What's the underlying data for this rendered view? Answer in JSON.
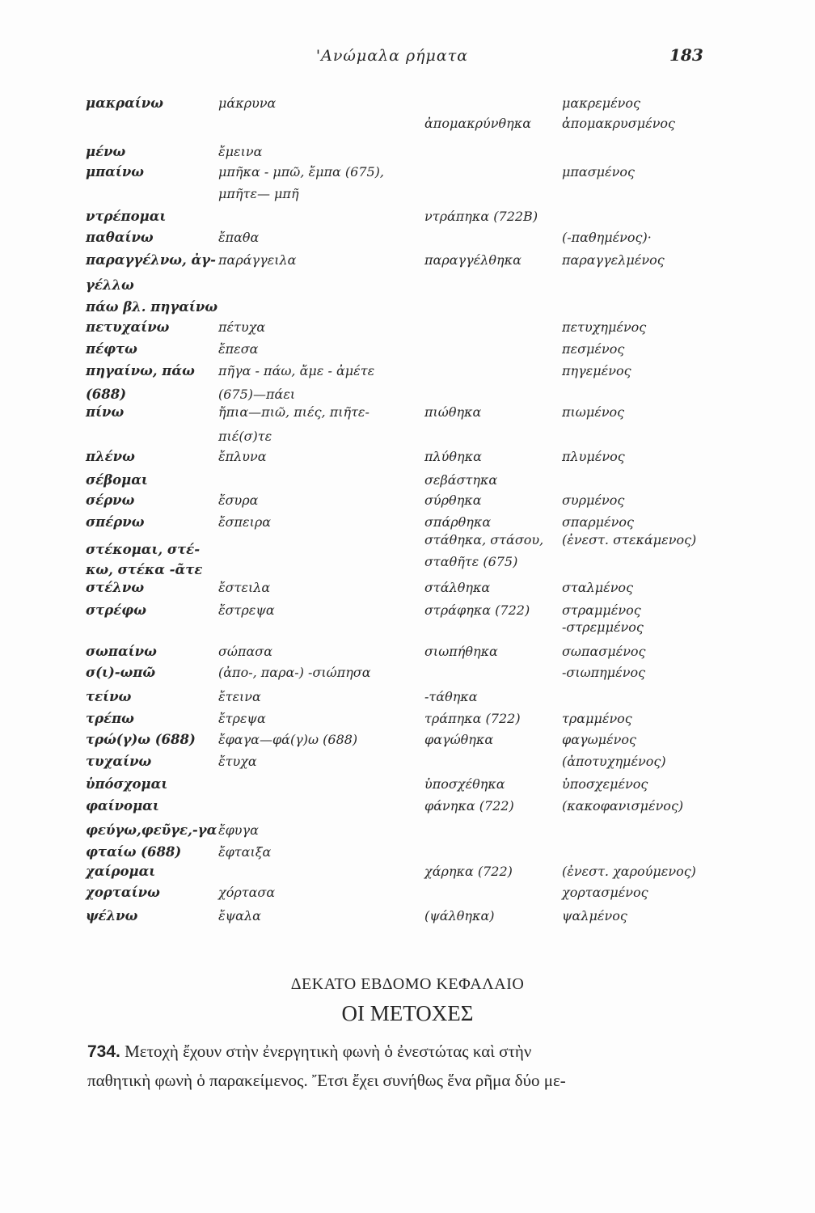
{
  "header": {
    "title": "'Ανώμαλα ρήματα",
    "page_number": "183"
  },
  "table": {
    "rows": [
      [
        "μακραίνω",
        "μάκρυνα",
        null,
        "μακρεμένος"
      ],
      [
        null,
        null,
        "ἀπομακρύνθηκα",
        "ἀπομακρυσμένος"
      ],
      [
        "μένω",
        "ἔμεινα",
        null,
        null
      ],
      [
        "μπαίνω",
        "μπῆκα - μπῶ, ἔμπα (675),",
        null,
        "μπασμένος"
      ],
      [
        null,
        "μπῆτε— μπῆ",
        null,
        null
      ],
      [
        "ντρέπομαι",
        null,
        "ντράπηκα (722Β)",
        null
      ],
      [
        "παθαίνω",
        "ἔπαθα",
        null,
        "(-παθημένος)·"
      ],
      [
        "παραγγέλνω, ἀγ-",
        "παράγγειλα",
        "παραγγέλθηκα",
        "παραγγελμένος"
      ],
      [
        "γέλλω",
        null,
        null,
        null
      ],
      [
        "πάω βλ. πηγαίνω",
        null,
        null,
        null
      ],
      [
        "πετυχαίνω",
        "πέτυχα",
        null,
        "πετυχημένος"
      ],
      [
        "πέφτω",
        "ἔπεσα",
        null,
        "πεσμένος"
      ],
      [
        "πηγαίνω, πάω",
        "πῆγα - πάω, ἄμε - ἀμέτε",
        null,
        "πηγεμένος"
      ],
      [
        "(688)",
        "(675)—πάει",
        null,
        null
      ],
      [
        "πίνω",
        "ἤπια—πιῶ, πιές, πιῆτε-",
        "πιώθηκα",
        "πιωμένος"
      ],
      [
        null,
        "πιέ(σ)τε",
        null,
        null
      ],
      [
        "πλένω",
        "ἔπλυνα",
        "πλύθηκα",
        "πλυμένος"
      ],
      [
        "σέβομαι",
        null,
        "σεβάστηκα",
        null
      ],
      [
        "σέρνω",
        "ἔσυρα",
        "σύρθηκα",
        "συρμένος"
      ],
      [
        "σπέρνω",
        "ἔσπειρα",
        "σπάρθηκα",
        "σπαρμένος"
      ],
      [
        null,
        null,
        "στάθηκα, στάσου,",
        "(ἐνεστ. στεκάμενος)"
      ],
      [
        "στέκομαι, στέ-",
        null,
        null,
        null
      ],
      [
        null,
        null,
        "σταθῆτε (675)",
        null
      ],
      [
        "κω, στέκα -ᾶτε",
        null,
        null,
        null
      ],
      [
        "στέλνω",
        "ἔστειλα",
        "στάλθηκα",
        "σταλμένος"
      ],
      [
        "στρέφω",
        "ἔστρεψα",
        "στράφηκα (722)",
        "στραμμένος"
      ],
      [
        null,
        null,
        null,
        "-στρεμμένος"
      ],
      [
        "σωπαίνω",
        "σώπασα",
        "σιωπήθηκα",
        "σωπασμένος"
      ],
      [
        "σ(ι)-ωπῶ",
        "(ἀπο-, παρα-) -σιώπησα",
        null,
        "-σιωπημένος"
      ],
      [
        "τείνω",
        "ἔτεινα",
        "-τάθηκα",
        null
      ],
      [
        "τρέπω",
        "ἔτρεψα",
        "τράπηκα (722)",
        "τραμμένος"
      ],
      [
        "τρώ(γ)ω (688)",
        "ἔφαγα—φά(γ)ω (688)",
        "φαγώθηκα",
        "φαγωμένος"
      ],
      [
        "τυχαίνω",
        "ἔτυχα",
        null,
        "(ἀποτυχημένος)"
      ],
      [
        "ὑπόσχομαι",
        null,
        "ὑποσχέθηκα",
        "ὑποσχεμένος"
      ],
      [
        "φαίνομαι",
        null,
        "φάνηκα (722)",
        "(κακοφανισμένος)"
      ],
      [
        "φεύγω,φεῦγε,-γα",
        "ἔφυγα",
        null,
        null
      ],
      [
        "φταίω (688)",
        "ἔφταιξα",
        null,
        null
      ],
      [
        "χαίρομαι",
        null,
        "χάρηκα (722)",
        "(ἐνεστ. χαρούμενος)"
      ],
      [
        "χορταίνω",
        "χόρτασα",
        null,
        "χορτασμένος"
      ],
      [
        "ψέλνω",
        "ἔψαλα",
        "(ψάλθηκα)",
        "ψαλμένος"
      ]
    ]
  },
  "section": {
    "chapter": "ΔΕΚΑΤΟ ΕΒΔΟΜΟ ΚΕΦΑΛΑΙΟ",
    "title": "ΟΙ ΜΕΤΟΧΕΣ",
    "paragraph": {
      "number": "734.",
      "lines": [
        "Μετοχὴ ἔχουν στὴν ἐνεργητικὴ φωνὴ ὁ ἐνεστώτας καὶ στὴν",
        "παθητικὴ φωνὴ ὁ παρακείμενος. Ἔτσι ἔχει συνήθως ἕνα ρῆμα δύο με-"
      ]
    }
  }
}
